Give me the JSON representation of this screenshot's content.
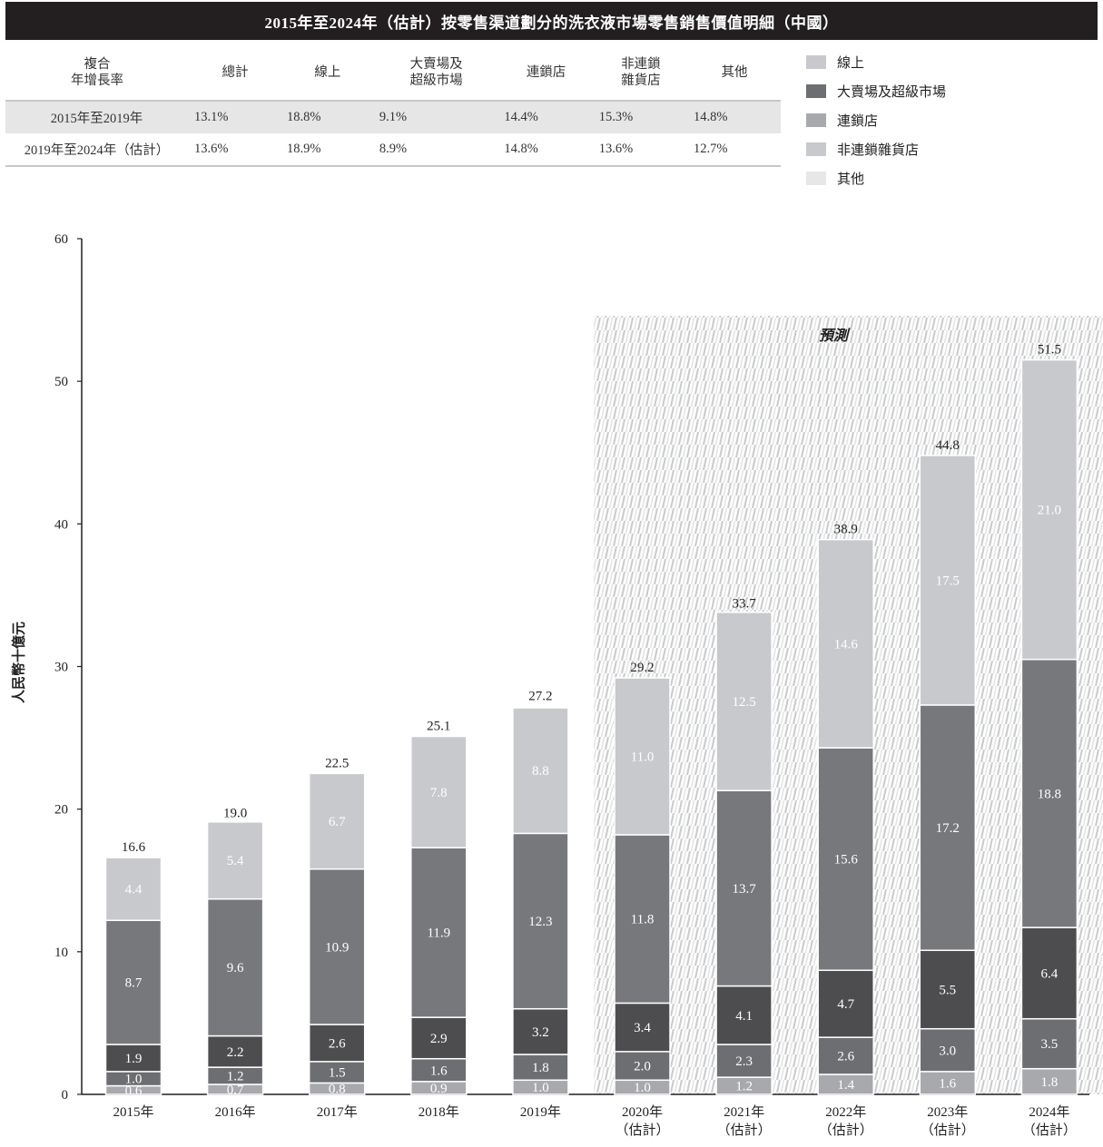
{
  "title": "2015年至2024年（估計）按零售渠道劃分的洗衣液市場零售銷售價值明細（中國）",
  "cagr_table": {
    "headers": [
      "複合\n年增長率",
      "總計",
      "線上",
      "大賣場及\n超級市場",
      "連鎖店",
      "非連鎖\n雜貨店",
      "其他"
    ],
    "rows": [
      {
        "label": "2015年至2019年",
        "values": [
          "13.1%",
          "18.8%",
          "9.1%",
          "14.4%",
          "15.3%",
          "14.8%"
        ]
      },
      {
        "label": "2019年至2024年（估計）",
        "values": [
          "13.6%",
          "18.9%",
          "8.9%",
          "14.8%",
          "13.6%",
          "12.7%"
        ]
      }
    ]
  },
  "legend": [
    {
      "label": "線上",
      "color": "#c8c9cc"
    },
    {
      "label": "大賣場及超級市場",
      "color": "#6d6e71"
    },
    {
      "label": "連鎖店",
      "color": "#a7a9ac"
    },
    {
      "label": "非連鎖雜貨店",
      "color": "#c8c9cc"
    },
    {
      "label": "其他",
      "color": "#e6e7e8"
    }
  ],
  "forecast_label": "預測",
  "chart_data": {
    "type": "bar",
    "stacked": true,
    "ylabel": "人民幣十億元",
    "ylim": [
      0,
      60
    ],
    "yticks": [
      0,
      10,
      20,
      30,
      40,
      50,
      60
    ],
    "categories": [
      [
        "2015年"
      ],
      [
        "2016年"
      ],
      [
        "2017年"
      ],
      [
        "2018年"
      ],
      [
        "2019年"
      ],
      [
        "2020年",
        "（估計）"
      ],
      [
        "2021年",
        "（估計）"
      ],
      [
        "2022年",
        "（估計）"
      ],
      [
        "2023年",
        "（估計）"
      ],
      [
        "2024年",
        "（估計）"
      ]
    ],
    "forecast_from_index": 5,
    "totals": [
      16.6,
      19.0,
      22.5,
      25.1,
      27.2,
      29.2,
      33.7,
      38.9,
      44.8,
      51.5
    ],
    "series": [
      {
        "color": "#a7a9ac",
        "values": [
          0.6,
          0.7,
          0.8,
          0.9,
          1.0,
          1.0,
          1.2,
          1.4,
          1.6,
          1.8
        ]
      },
      {
        "color": "#6d6e71",
        "values": [
          1.0,
          1.2,
          1.5,
          1.6,
          1.8,
          2.0,
          2.3,
          2.6,
          3.0,
          3.5
        ]
      },
      {
        "color": "#4d4d4f",
        "values": [
          1.9,
          2.2,
          2.6,
          2.9,
          3.2,
          3.4,
          4.1,
          4.7,
          5.5,
          6.4
        ]
      },
      {
        "color": "#77787b",
        "values": [
          8.7,
          9.6,
          10.9,
          11.9,
          12.3,
          11.8,
          13.7,
          15.6,
          17.2,
          18.8
        ]
      },
      {
        "color": "#c8c9cc",
        "values": [
          4.4,
          5.4,
          6.7,
          7.8,
          8.8,
          11.0,
          12.5,
          14.6,
          17.5,
          21.0
        ]
      }
    ]
  }
}
